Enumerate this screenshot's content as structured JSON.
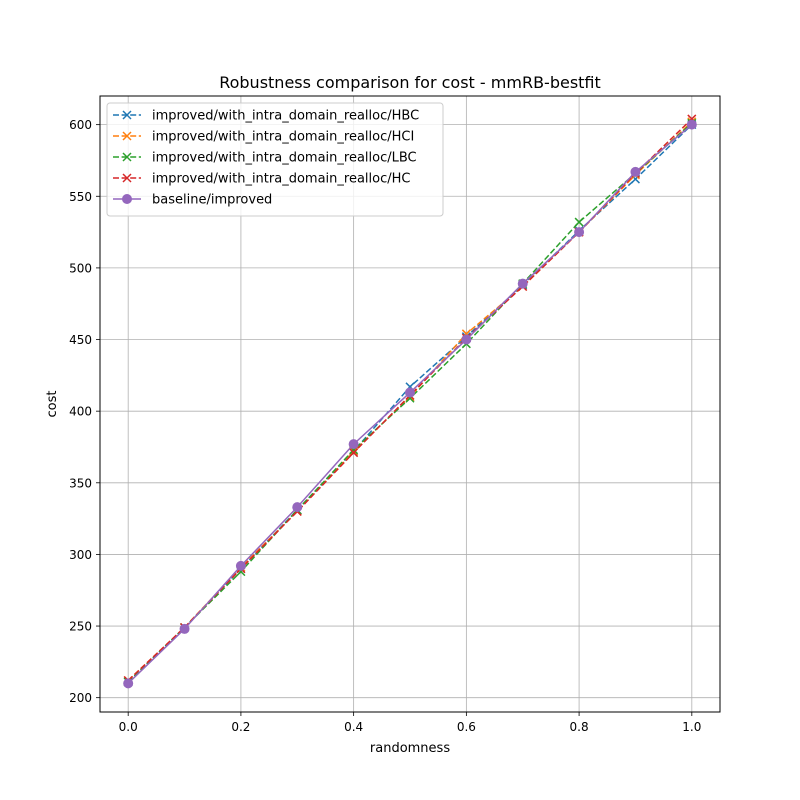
{
  "chart_data": {
    "type": "line",
    "title": "Robustness comparison for cost - mmRB-bestfit",
    "xlabel": "randomness",
    "ylabel": "cost",
    "xlim": [
      -0.05,
      1.05
    ],
    "ylim": [
      190,
      620
    ],
    "xticks": [
      0.0,
      0.2,
      0.4,
      0.6,
      0.8,
      1.0
    ],
    "xtick_labels": [
      "0.0",
      "0.2",
      "0.4",
      "0.6",
      "0.8",
      "1.0"
    ],
    "yticks": [
      200,
      250,
      300,
      350,
      400,
      450,
      500,
      550,
      600
    ],
    "ytick_labels": [
      "200",
      "250",
      "300",
      "350",
      "400",
      "450",
      "500",
      "550",
      "600"
    ],
    "grid": true,
    "legend_position": "upper-left",
    "x": [
      0.0,
      0.1,
      0.2,
      0.3,
      0.4,
      0.5,
      0.6,
      0.7,
      0.8,
      0.9,
      1.0
    ],
    "series": [
      {
        "name": "improved/with_intra_domain_realloc/HBC",
        "color": "#1f77b4",
        "linestyle": "dashed",
        "marker": "x",
        "values": [
          211,
          249,
          290,
          331,
          372,
          417,
          452,
          488,
          526,
          562,
          600
        ]
      },
      {
        "name": "improved/with_intra_domain_realloc/HCI",
        "color": "#ff7f0e",
        "linestyle": "dashed",
        "marker": "x",
        "values": [
          212,
          249,
          291,
          330,
          372,
          410,
          454,
          487,
          525,
          565,
          602
        ]
      },
      {
        "name": "improved/with_intra_domain_realloc/LBC",
        "color": "#2ca02c",
        "linestyle": "dashed",
        "marker": "x",
        "values": [
          211,
          249,
          288,
          331,
          373,
          409,
          447,
          489,
          532,
          566,
          601
        ]
      },
      {
        "name": "improved/with_intra_domain_realloc/HC",
        "color": "#d62728",
        "linestyle": "dashed",
        "marker": "x",
        "values": [
          212,
          249,
          290,
          330,
          371,
          411,
          451,
          487,
          525,
          566,
          604
        ]
      },
      {
        "name": "baseline/improved",
        "color": "#9467bd",
        "linestyle": "solid",
        "marker": "o",
        "values": [
          210,
          248,
          292,
          333,
          377,
          413,
          450,
          489,
          525,
          567,
          600
        ]
      }
    ]
  }
}
